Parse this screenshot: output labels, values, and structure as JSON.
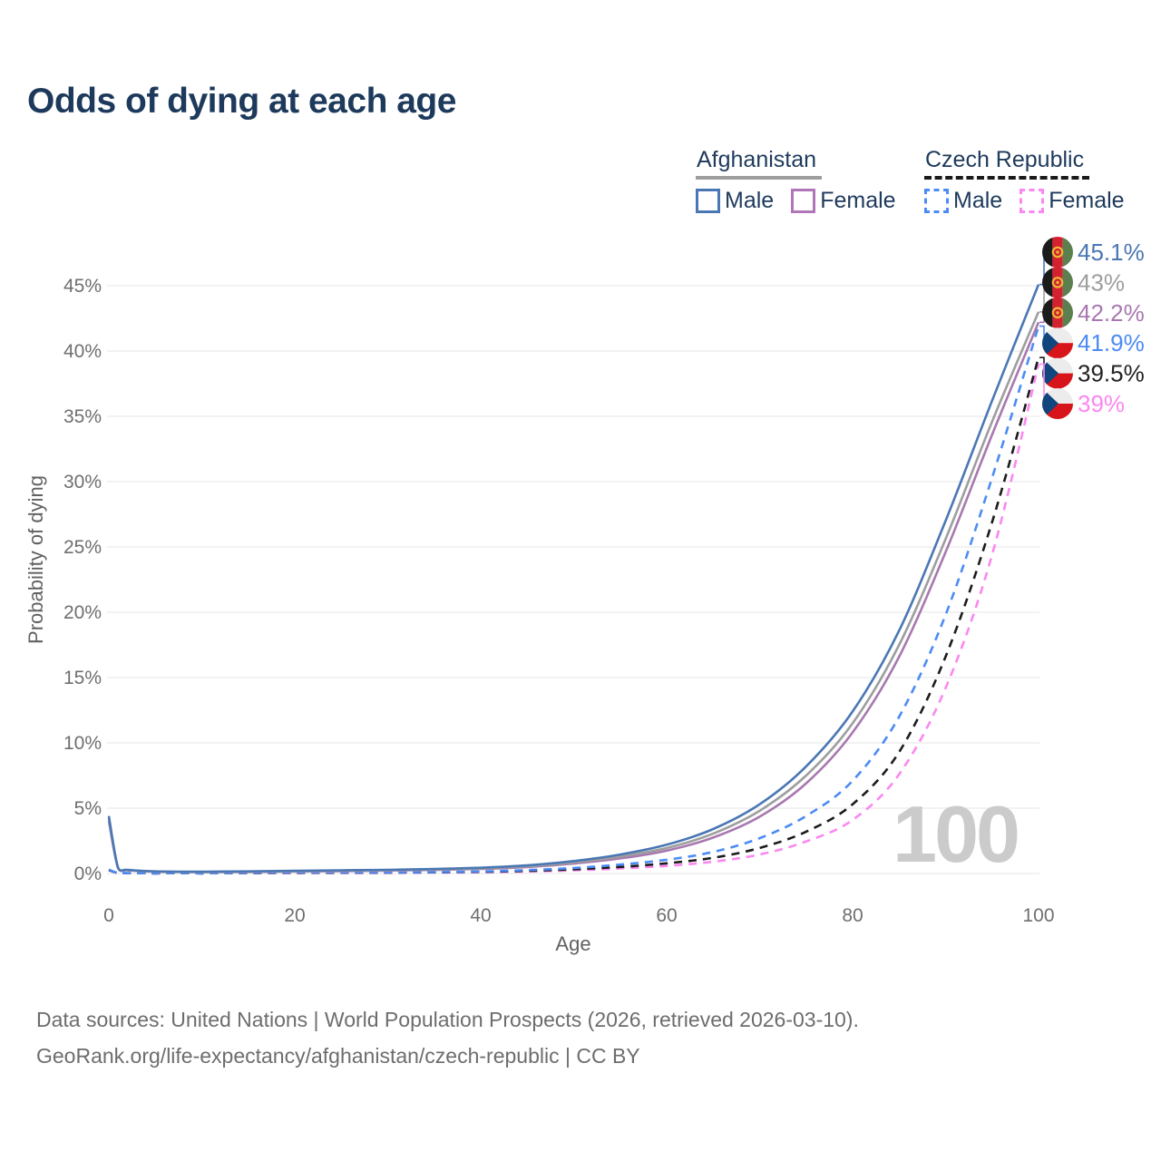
{
  "title": "Odds of dying at each age",
  "legend": {
    "groups": [
      {
        "label": "Afghanistan",
        "line_style": "solid",
        "underline_color": "#9e9e9e",
        "items": [
          {
            "label": "Male",
            "color": "#4a77b4"
          },
          {
            "label": "Female",
            "color": "#b077b8"
          }
        ]
      },
      {
        "label": "Czech Republic",
        "line_style": "dashed",
        "underline_color": "#1a1a1a",
        "items": [
          {
            "label": "Male",
            "color": "#4c8bf5"
          },
          {
            "label": "Female",
            "color": "#fb87f1"
          }
        ]
      }
    ]
  },
  "chart_data": {
    "type": "line",
    "title": "Odds of dying at each age",
    "xlabel": "Age",
    "ylabel": "Probability of dying",
    "xlim": [
      0,
      100
    ],
    "ylim": [
      0,
      47
    ],
    "xticks": [
      0,
      20,
      40,
      60,
      80,
      100
    ],
    "yticks": [
      0,
      5,
      10,
      15,
      20,
      25,
      30,
      35,
      40,
      45
    ],
    "grid": "horizontal-only",
    "legend_position": "top-right",
    "age_indicator": "100",
    "series": [
      {
        "id": "afghanistan-male",
        "name": "Afghanistan Male",
        "country": "Afghanistan",
        "sex": "Male",
        "style": "solid",
        "color": "#4a77b4",
        "label_color": "#4a77b4",
        "flag": "af",
        "end_label": "45.1%",
        "points": [
          [
            0,
            4.4
          ],
          [
            1,
            0.42
          ],
          [
            2,
            0.28
          ],
          [
            5,
            0.16
          ],
          [
            10,
            0.13
          ],
          [
            15,
            0.16
          ],
          [
            20,
            0.2
          ],
          [
            25,
            0.24
          ],
          [
            30,
            0.28
          ],
          [
            35,
            0.34
          ],
          [
            40,
            0.44
          ],
          [
            45,
            0.62
          ],
          [
            50,
            0.95
          ],
          [
            55,
            1.45
          ],
          [
            60,
            2.2
          ],
          [
            65,
            3.4
          ],
          [
            70,
            5.3
          ],
          [
            75,
            8.2
          ],
          [
            80,
            12.4
          ],
          [
            85,
            18.6
          ],
          [
            90,
            27.0
          ],
          [
            95,
            36.2
          ],
          [
            100,
            45.1
          ]
        ]
      },
      {
        "id": "afghanistan-both",
        "name": "Afghanistan (both sexes)",
        "country": "Afghanistan",
        "sex": "Both sexes",
        "style": "solid",
        "color": "#9e9e9e",
        "label_color": "#9e9e9e",
        "flag": "af",
        "end_label": "43%",
        "points": [
          [
            0,
            4.2
          ],
          [
            1,
            0.4
          ],
          [
            2,
            0.26
          ],
          [
            5,
            0.15
          ],
          [
            10,
            0.12
          ],
          [
            15,
            0.14
          ],
          [
            20,
            0.17
          ],
          [
            25,
            0.21
          ],
          [
            30,
            0.25
          ],
          [
            35,
            0.3
          ],
          [
            40,
            0.39
          ],
          [
            45,
            0.55
          ],
          [
            50,
            0.85
          ],
          [
            55,
            1.3
          ],
          [
            60,
            1.95
          ],
          [
            65,
            3.05
          ],
          [
            70,
            4.8
          ],
          [
            75,
            7.5
          ],
          [
            80,
            11.5
          ],
          [
            85,
            17.5
          ],
          [
            90,
            25.6
          ],
          [
            95,
            34.6
          ],
          [
            100,
            43.0
          ]
        ]
      },
      {
        "id": "afghanistan-female",
        "name": "Afghanistan Female",
        "country": "Afghanistan",
        "sex": "Female",
        "style": "solid",
        "color": "#a878b0",
        "label_color": "#a878b0",
        "flag": "af",
        "end_label": "42.2%",
        "points": [
          [
            0,
            4.0
          ],
          [
            1,
            0.38
          ],
          [
            2,
            0.25
          ],
          [
            5,
            0.14
          ],
          [
            10,
            0.11
          ],
          [
            15,
            0.12
          ],
          [
            20,
            0.15
          ],
          [
            25,
            0.18
          ],
          [
            30,
            0.22
          ],
          [
            35,
            0.27
          ],
          [
            40,
            0.35
          ],
          [
            45,
            0.49
          ],
          [
            50,
            0.76
          ],
          [
            55,
            1.15
          ],
          [
            60,
            1.75
          ],
          [
            65,
            2.75
          ],
          [
            70,
            4.35
          ],
          [
            75,
            6.9
          ],
          [
            80,
            10.8
          ],
          [
            85,
            16.6
          ],
          [
            90,
            24.6
          ],
          [
            95,
            33.6
          ],
          [
            100,
            42.2
          ]
        ]
      },
      {
        "id": "czech-male",
        "name": "Czech Republic Male",
        "country": "Czech Republic",
        "sex": "Male",
        "style": "dashed",
        "color": "#4c8bf5",
        "label_color": "#4c8bf5",
        "flag": "cz",
        "end_label": "41.9%",
        "points": [
          [
            0,
            0.3
          ],
          [
            1,
            0.03
          ],
          [
            2,
            0.02
          ],
          [
            5,
            0.01
          ],
          [
            10,
            0.01
          ],
          [
            15,
            0.04
          ],
          [
            20,
            0.07
          ],
          [
            25,
            0.08
          ],
          [
            30,
            0.09
          ],
          [
            35,
            0.11
          ],
          [
            40,
            0.16
          ],
          [
            45,
            0.26
          ],
          [
            50,
            0.42
          ],
          [
            55,
            0.68
          ],
          [
            60,
            1.05
          ],
          [
            65,
            1.65
          ],
          [
            70,
            2.7
          ],
          [
            75,
            4.4
          ],
          [
            80,
            7.1
          ],
          [
            85,
            12.0
          ],
          [
            90,
            19.8
          ],
          [
            95,
            30.3
          ],
          [
            100,
            41.9
          ]
        ]
      },
      {
        "id": "czech-both",
        "name": "Czech Republic (both sexes)",
        "country": "Czech Republic",
        "sex": "Both sexes",
        "style": "dashed",
        "color": "#1c1c1c",
        "label_color": "#222222",
        "flag": "cz",
        "end_label": "39.5%",
        "points": [
          [
            0,
            0.27
          ],
          [
            1,
            0.025
          ],
          [
            2,
            0.018
          ],
          [
            5,
            0.01
          ],
          [
            10,
            0.01
          ],
          [
            15,
            0.03
          ],
          [
            20,
            0.05
          ],
          [
            25,
            0.06
          ],
          [
            30,
            0.07
          ],
          [
            35,
            0.09
          ],
          [
            40,
            0.13
          ],
          [
            45,
            0.2
          ],
          [
            50,
            0.32
          ],
          [
            55,
            0.5
          ],
          [
            60,
            0.78
          ],
          [
            65,
            1.2
          ],
          [
            70,
            1.95
          ],
          [
            75,
            3.2
          ],
          [
            80,
            5.3
          ],
          [
            85,
            9.3
          ],
          [
            90,
            16.6
          ],
          [
            95,
            26.9
          ],
          [
            100,
            39.5
          ]
        ]
      },
      {
        "id": "czech-female",
        "name": "Czech Republic Female",
        "country": "Czech Republic",
        "sex": "Female",
        "style": "dashed",
        "color": "#fb87f1",
        "label_color": "#fb87f1",
        "flag": "cz",
        "end_label": "39%",
        "points": [
          [
            0,
            0.24
          ],
          [
            1,
            0.02
          ],
          [
            2,
            0.015
          ],
          [
            5,
            0.01
          ],
          [
            10,
            0.01
          ],
          [
            15,
            0.02
          ],
          [
            20,
            0.03
          ],
          [
            25,
            0.04
          ],
          [
            30,
            0.05
          ],
          [
            35,
            0.07
          ],
          [
            40,
            0.1
          ],
          [
            45,
            0.15
          ],
          [
            50,
            0.24
          ],
          [
            55,
            0.38
          ],
          [
            60,
            0.58
          ],
          [
            65,
            0.9
          ],
          [
            70,
            1.45
          ],
          [
            75,
            2.45
          ],
          [
            80,
            4.1
          ],
          [
            85,
            7.6
          ],
          [
            90,
            14.2
          ],
          [
            95,
            24.4
          ],
          [
            100,
            39.0
          ]
        ]
      }
    ]
  },
  "footer": {
    "line1": "Data sources: United Nations | World Population Prospects (2026, retrieved 2026-03-10).",
    "line2": "GeoRank.org/life-expectancy/afghanistan/czech-republic | CC BY"
  }
}
